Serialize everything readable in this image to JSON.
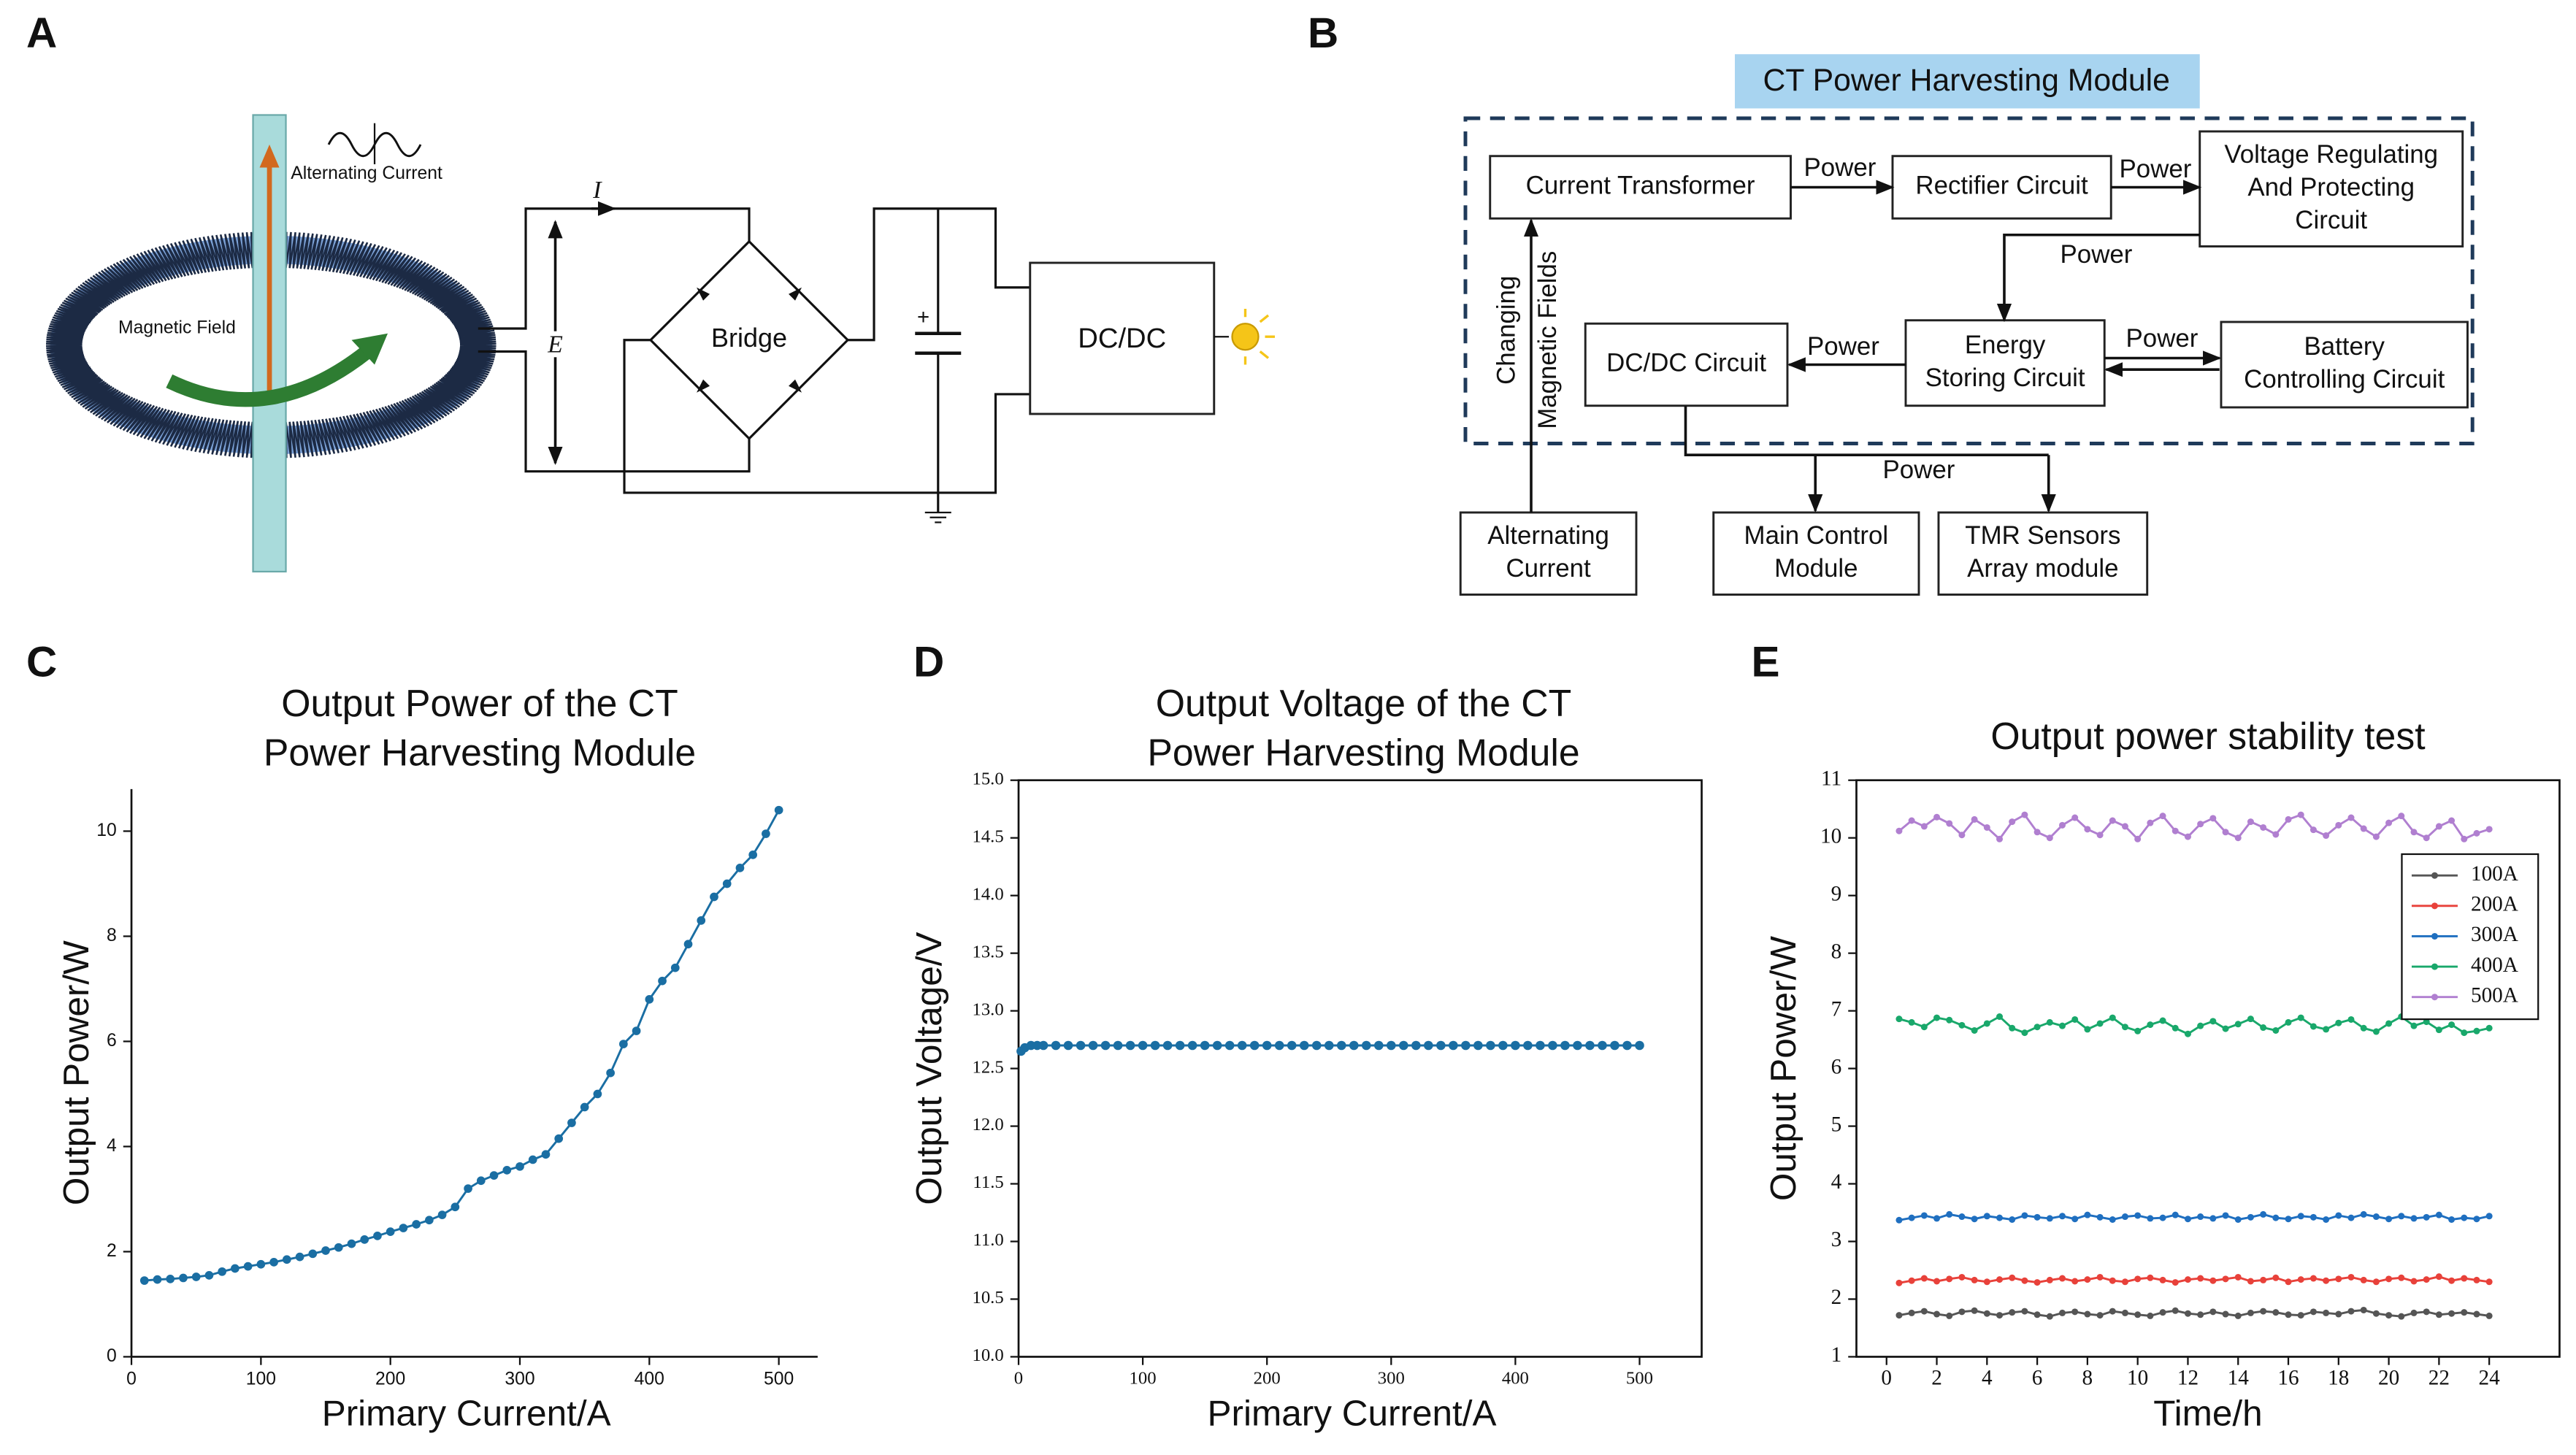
{
  "panel_a": {
    "letter": "A",
    "source_label": "Alternating Current",
    "field_label": "Magnetic Field",
    "current_symbol": "I",
    "voltage_symbol": "E",
    "bridge_label": "Bridge",
    "converter_label": "DC/DC",
    "polarity": "+"
  },
  "panel_b": {
    "letter": "B",
    "title": "CT Power Harvesting Module",
    "nodes": [
      {
        "label": [
          "Current Transformer"
        ]
      },
      {
        "label": [
          "Rectifier Circuit"
        ]
      },
      {
        "label": [
          "Voltage Regulating",
          "And Protecting",
          "Circuit"
        ]
      },
      {
        "label": [
          "Energy",
          "Storing Circuit"
        ]
      },
      {
        "label": [
          "Battery",
          "Controlling Circuit"
        ]
      },
      {
        "label": [
          "DC/DC Circuit"
        ]
      },
      {
        "label": [
          "Alternating",
          "Current"
        ]
      },
      {
        "label": [
          "Main Control",
          "Module"
        ]
      },
      {
        "label": [
          "TMR Sensors",
          "Array module"
        ]
      }
    ],
    "edges": [
      {
        "label": "Power"
      },
      {
        "label": "Power"
      },
      {
        "label": "Power"
      },
      {
        "label": "Power"
      },
      {
        "label": "Power"
      },
      {
        "label": "Power"
      }
    ],
    "side_label": [
      "Changing",
      "Magnetic Fields"
    ]
  },
  "chart_data": [
    {
      "type": "line",
      "panel": "C",
      "title": [
        "Output Power of the CT",
        "Power Harvesting Module"
      ],
      "x_label": "Primary Current/A",
      "y_label": "Output Power/W",
      "color": "#1a6ea3",
      "x": [
        10,
        20,
        30,
        40,
        50,
        60,
        70,
        80,
        90,
        100,
        110,
        120,
        130,
        140,
        150,
        160,
        170,
        180,
        190,
        200,
        210,
        220,
        230,
        240,
        250,
        260,
        270,
        280,
        290,
        300,
        310,
        320,
        330,
        340,
        350,
        360,
        370,
        380,
        390,
        400,
        410,
        420,
        430,
        440,
        450,
        460,
        470,
        480,
        490,
        500
      ],
      "values": [
        1.45,
        1.47,
        1.48,
        1.5,
        1.52,
        1.55,
        1.62,
        1.68,
        1.72,
        1.76,
        1.8,
        1.85,
        1.9,
        1.96,
        2.02,
        2.08,
        2.15,
        2.23,
        2.3,
        2.38,
        2.45,
        2.52,
        2.6,
        2.7,
        2.85,
        3.2,
        3.35,
        3.45,
        3.55,
        3.62,
        3.75,
        3.85,
        4.15,
        4.45,
        4.75,
        5.0,
        5.4,
        5.95,
        6.2,
        6.8,
        7.15,
        7.4,
        7.85,
        8.3,
        8.75,
        9.0,
        9.3,
        9.55,
        9.95,
        10.4
      ],
      "xlim": [
        0,
        530
      ],
      "xticks": [
        0,
        100,
        200,
        300,
        400,
        500
      ],
      "ylim": [
        0,
        10.8
      ],
      "yticks": [
        0,
        2,
        4,
        6,
        8,
        10
      ]
    },
    {
      "type": "line",
      "panel": "D",
      "title": [
        "Output Voltage of the CT",
        "Power Harvesting Module"
      ],
      "x_label": "Primary Current/A",
      "y_label": "Output Voltage/V",
      "color": "#1a6ea3",
      "x": [
        2,
        5,
        10,
        15,
        20,
        30,
        40,
        50,
        60,
        70,
        80,
        90,
        100,
        110,
        120,
        130,
        140,
        150,
        160,
        170,
        180,
        190,
        200,
        210,
        220,
        230,
        240,
        250,
        260,
        270,
        280,
        290,
        300,
        310,
        320,
        330,
        340,
        350,
        360,
        370,
        380,
        390,
        400,
        410,
        420,
        430,
        440,
        450,
        460,
        470,
        480,
        490,
        500
      ],
      "values": [
        12.65,
        12.68,
        12.7,
        12.7,
        12.7,
        12.7,
        12.7,
        12.7,
        12.7,
        12.7,
        12.7,
        12.7,
        12.7,
        12.7,
        12.7,
        12.7,
        12.7,
        12.7,
        12.7,
        12.7,
        12.7,
        12.7,
        12.7,
        12.7,
        12.7,
        12.7,
        12.7,
        12.7,
        12.7,
        12.7,
        12.7,
        12.7,
        12.7,
        12.7,
        12.7,
        12.7,
        12.7,
        12.7,
        12.7,
        12.7,
        12.7,
        12.7,
        12.7,
        12.7,
        12.7,
        12.7,
        12.7,
        12.7,
        12.7,
        12.7,
        12.7,
        12.7,
        12.7
      ],
      "xlim": [
        0,
        550
      ],
      "xticks": [
        0,
        100,
        200,
        300,
        400,
        500
      ],
      "ylim": [
        10,
        15
      ],
      "yticks": [
        {
          "value": 10,
          "label": "10.0"
        },
        10.5,
        {
          "value": 11,
          "label": "11.0"
        },
        11.5,
        {
          "value": 12,
          "label": "12.0"
        },
        12.5,
        {
          "value": 13,
          "label": "13.0"
        },
        13.5,
        {
          "value": 14,
          "label": "14.0"
        },
        14.5,
        {
          "value": 15,
          "label": "15.0"
        }
      ]
    },
    {
      "type": "line",
      "panel": "E",
      "title": [
        "Output power stability test"
      ],
      "x_label": "Time/h",
      "y_label": "Output Power/W",
      "legend": "upper right",
      "x": [
        0.5,
        1,
        1.5,
        2,
        2.5,
        3,
        3.5,
        4,
        4.5,
        5,
        5.5,
        6,
        6.5,
        7,
        7.5,
        8,
        8.5,
        9,
        9.5,
        10,
        10.5,
        11,
        11.5,
        12,
        12.5,
        13,
        13.5,
        14,
        14.5,
        15,
        15.5,
        16,
        16.5,
        17,
        17.5,
        18,
        18.5,
        19,
        19.5,
        20,
        20.5,
        21,
        21.5,
        22,
        22.5,
        23,
        23.5,
        24
      ],
      "series": [
        {
          "name": "100A",
          "color": "#555555",
          "values": [
            1.72,
            1.76,
            1.79,
            1.74,
            1.71,
            1.78,
            1.8,
            1.75,
            1.72,
            1.77,
            1.79,
            1.73,
            1.7,
            1.76,
            1.78,
            1.74,
            1.72,
            1.79,
            1.76,
            1.73,
            1.71,
            1.77,
            1.8,
            1.75,
            1.73,
            1.78,
            1.74,
            1.71,
            1.76,
            1.79,
            1.77,
            1.73,
            1.72,
            1.78,
            1.76,
            1.74,
            1.79,
            1.81,
            1.75,
            1.72,
            1.7,
            1.76,
            1.78,
            1.73,
            1.75,
            1.77,
            1.74,
            1.71
          ]
        },
        {
          "name": "200A",
          "color": "#e8413a",
          "values": [
            2.28,
            2.32,
            2.36,
            2.31,
            2.35,
            2.38,
            2.33,
            2.3,
            2.34,
            2.37,
            2.32,
            2.29,
            2.33,
            2.36,
            2.31,
            2.34,
            2.38,
            2.32,
            2.3,
            2.35,
            2.37,
            2.33,
            2.29,
            2.34,
            2.36,
            2.32,
            2.35,
            2.38,
            2.31,
            2.33,
            2.37,
            2.3,
            2.34,
            2.36,
            2.32,
            2.35,
            2.38,
            2.33,
            2.3,
            2.35,
            2.37,
            2.31,
            2.34,
            2.39,
            2.32,
            2.36,
            2.33,
            2.3
          ]
        },
        {
          "name": "300A",
          "color": "#1f6fc0",
          "values": [
            3.37,
            3.41,
            3.45,
            3.4,
            3.47,
            3.43,
            3.39,
            3.44,
            3.41,
            3.38,
            3.45,
            3.42,
            3.4,
            3.44,
            3.39,
            3.46,
            3.42,
            3.38,
            3.43,
            3.45,
            3.4,
            3.41,
            3.46,
            3.39,
            3.43,
            3.4,
            3.45,
            3.38,
            3.42,
            3.47,
            3.41,
            3.39,
            3.44,
            3.42,
            3.38,
            3.45,
            3.41,
            3.47,
            3.43,
            3.39,
            3.44,
            3.4,
            3.42,
            3.46,
            3.38,
            3.41,
            3.39,
            3.44
          ]
        },
        {
          "name": "400A",
          "color": "#19a86b",
          "values": [
            6.86,
            6.8,
            6.72,
            6.88,
            6.84,
            6.75,
            6.66,
            6.78,
            6.9,
            6.7,
            6.62,
            6.72,
            6.8,
            6.74,
            6.85,
            6.68,
            6.78,
            6.88,
            6.72,
            6.65,
            6.76,
            6.83,
            6.7,
            6.6,
            6.74,
            6.82,
            6.69,
            6.77,
            6.86,
            6.71,
            6.66,
            6.8,
            6.88,
            6.73,
            6.68,
            6.79,
            6.85,
            6.7,
            6.64,
            6.78,
            6.9,
            6.74,
            6.81,
            6.67,
            6.76,
            6.62,
            6.65,
            6.7
          ]
        },
        {
          "name": "500A",
          "color": "#b07fd0",
          "values": [
            10.12,
            10.3,
            10.2,
            10.36,
            10.25,
            10.05,
            10.32,
            10.18,
            9.98,
            10.28,
            10.4,
            10.1,
            10.0,
            10.22,
            10.35,
            10.15,
            10.05,
            10.3,
            10.2,
            9.98,
            10.26,
            10.38,
            10.12,
            10.02,
            10.24,
            10.34,
            10.1,
            10.0,
            10.28,
            10.18,
            10.06,
            10.32,
            10.4,
            10.14,
            10.04,
            10.22,
            10.35,
            10.16,
            10.02,
            10.26,
            10.38,
            10.1,
            10.0,
            10.2,
            10.3,
            9.98,
            10.08,
            10.15
          ]
        }
      ],
      "xlim": [
        -1.2,
        26.8
      ],
      "xticks": [
        0,
        2,
        4,
        6,
        8,
        10,
        12,
        14,
        16,
        18,
        20,
        22,
        24
      ],
      "ylim": [
        1,
        11
      ],
      "yticks": [
        1,
        2,
        3,
        4,
        5,
        6,
        7,
        8,
        9,
        10,
        11
      ]
    }
  ]
}
